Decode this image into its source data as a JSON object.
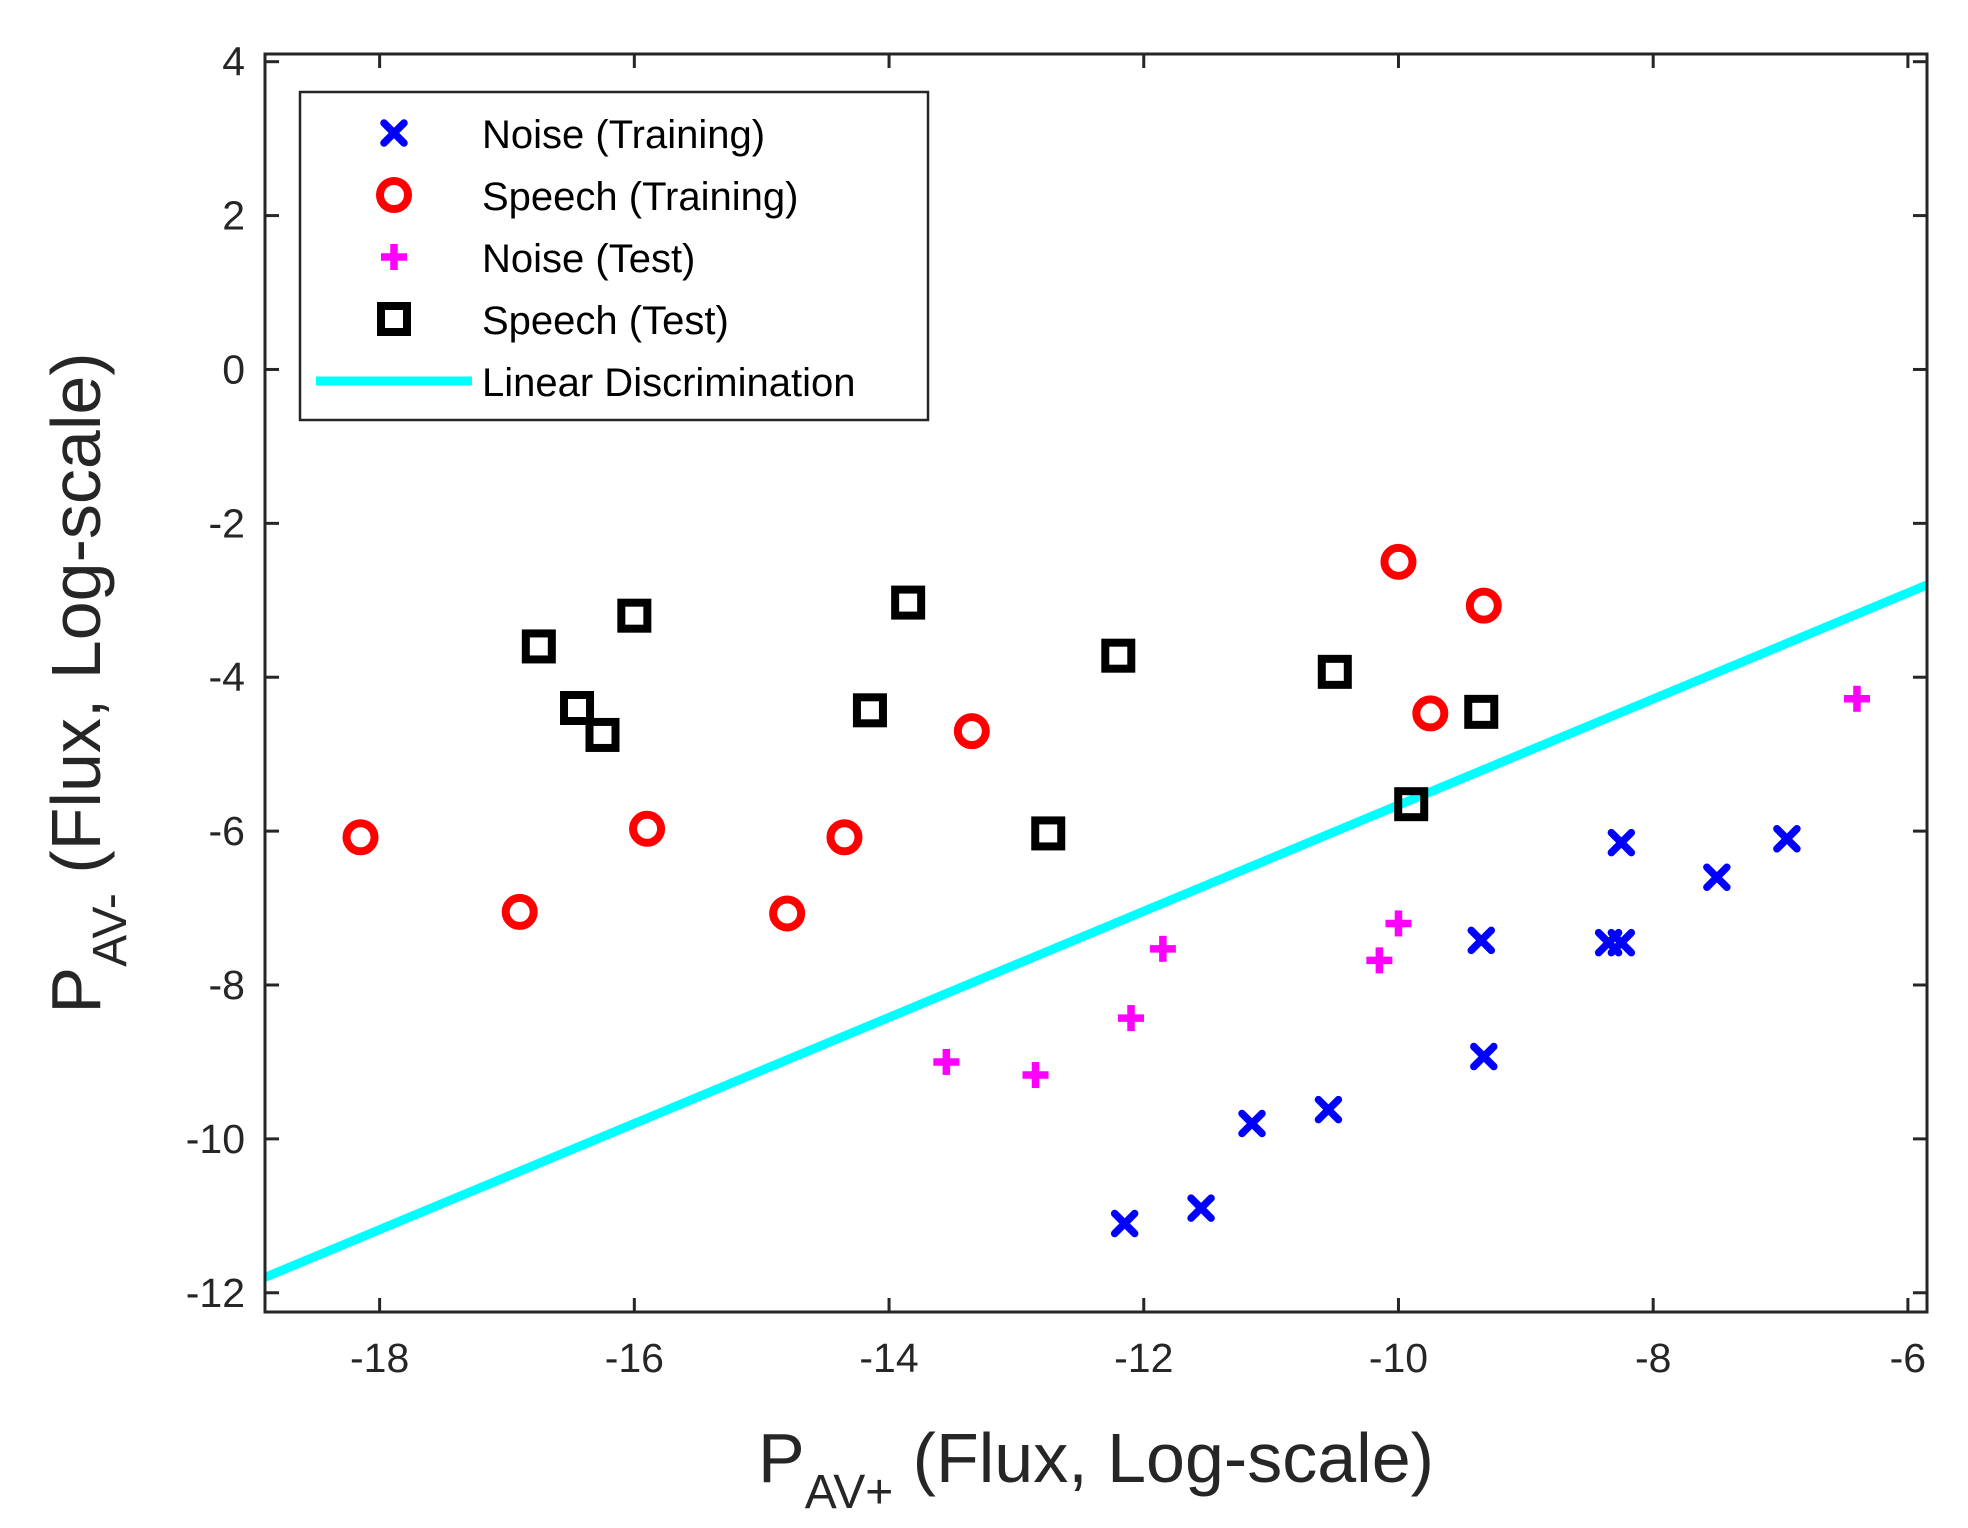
{
  "chart_data": {
    "type": "scatter",
    "title": "",
    "xlabel": {
      "main": "P",
      "sub": "AV+",
      "rest": " (Flux, Log-scale)"
    },
    "ylabel": {
      "main": "P",
      "sub": "AV-",
      "rest": " (Flux, Log-scale)"
    },
    "xlim": [
      -18.9,
      -5.85
    ],
    "ylim": [
      -12.25,
      4.1
    ],
    "xticks": [
      -18,
      -16,
      -14,
      -12,
      -10,
      -8,
      -6
    ],
    "yticks": [
      -12,
      -10,
      -8,
      -6,
      -4,
      -2,
      0,
      2,
      4
    ],
    "xtick_labels": [
      "-18",
      "-16",
      "-14",
      "-12",
      "-10",
      "-8",
      "-6"
    ],
    "ytick_labels": [
      "-12",
      "-10",
      "-8",
      "-6",
      "-4",
      "-2",
      "0",
      "2",
      "4"
    ],
    "legend_position": "top-left",
    "grid": false,
    "series": [
      {
        "name": "Noise (Training)",
        "marker": "x",
        "color": "#0000ff",
        "points": [
          [
            -12.15,
            -11.1
          ],
          [
            -11.55,
            -10.9
          ],
          [
            -11.15,
            -9.8
          ],
          [
            -10.55,
            -9.62
          ],
          [
            -9.35,
            -7.42
          ],
          [
            -9.33,
            -8.93
          ],
          [
            -8.35,
            -7.45
          ],
          [
            -8.25,
            -7.45
          ],
          [
            -8.25,
            -6.15
          ],
          [
            -7.5,
            -6.6
          ],
          [
            -6.95,
            -6.1
          ]
        ]
      },
      {
        "name": "Speech (Training)",
        "marker": "o",
        "color": "#ff0000",
        "points": [
          [
            -18.15,
            -6.08
          ],
          [
            -16.9,
            -7.05
          ],
          [
            -15.9,
            -5.97
          ],
          [
            -14.8,
            -7.07
          ],
          [
            -14.35,
            -6.08
          ],
          [
            -13.35,
            -4.7
          ],
          [
            -10.0,
            -2.5
          ],
          [
            -9.75,
            -4.47
          ],
          [
            -9.33,
            -3.07
          ]
        ]
      },
      {
        "name": "Noise (Test)",
        "marker": "+",
        "color": "#ff00ff",
        "points": [
          [
            -13.55,
            -9.0
          ],
          [
            -12.85,
            -9.17
          ],
          [
            -12.1,
            -8.43
          ],
          [
            -11.85,
            -7.53
          ],
          [
            -10.15,
            -7.68
          ],
          [
            -10.0,
            -7.2
          ],
          [
            -6.4,
            -4.28
          ]
        ]
      },
      {
        "name": "Speech (Test)",
        "marker": "s",
        "color": "#000000",
        "points": [
          [
            -16.75,
            -3.6
          ],
          [
            -16.45,
            -4.4
          ],
          [
            -16.25,
            -4.75
          ],
          [
            -16.0,
            -3.2
          ],
          [
            -14.15,
            -4.43
          ],
          [
            -13.85,
            -3.03
          ],
          [
            -12.75,
            -6.03
          ],
          [
            -12.2,
            -3.72
          ],
          [
            -10.5,
            -3.93
          ],
          [
            -9.9,
            -5.65
          ],
          [
            -9.35,
            -4.45
          ]
        ]
      },
      {
        "name": "Linear Discrimination",
        "marker": "line",
        "color": "#00ffff",
        "points": [
          [
            -18.9,
            -11.8
          ],
          [
            -5.85,
            -2.8
          ]
        ]
      }
    ]
  }
}
